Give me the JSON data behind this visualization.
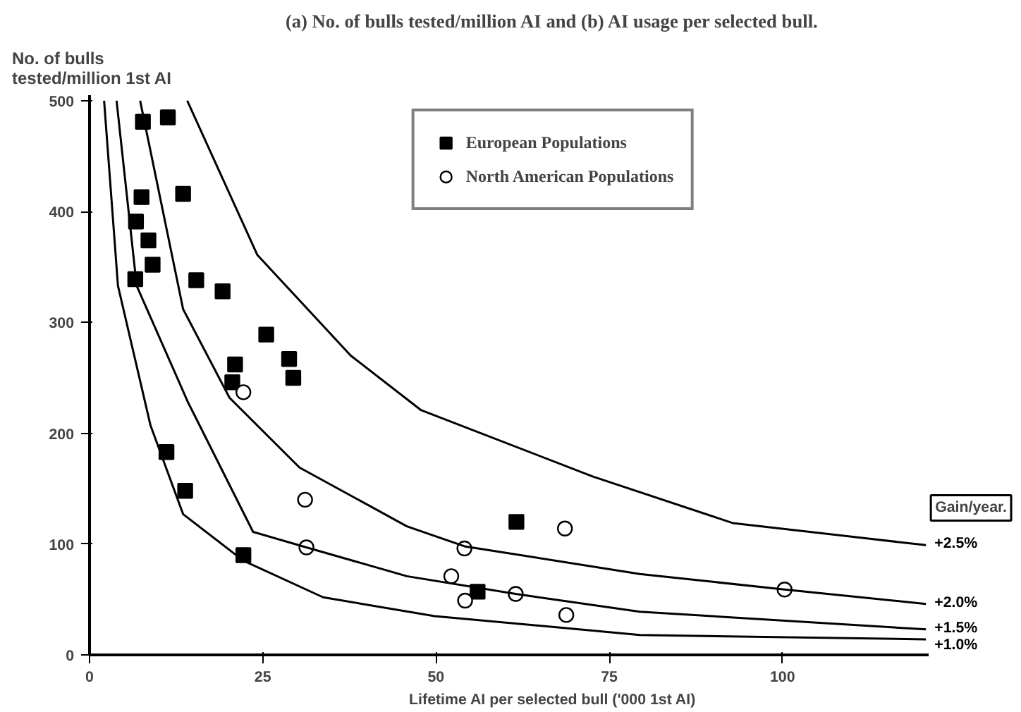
{
  "chart_data": {
    "type": "scatter",
    "title": "(a) No. of bulls tested/million AI and (b) AI usage per selected bull.",
    "ylabel": "No. of bulls\ntested/million 1st AI",
    "xlabel": "Lifetime AI per selected bull ('000 1st AI)",
    "annotations": [
      "Gain/year."
    ],
    "xlim": [
      0,
      121
    ],
    "ylim": [
      0,
      505
    ],
    "xticks": [
      0,
      25,
      50,
      75,
      100
    ],
    "yticks": [
      0,
      100,
      200,
      300,
      400,
      500
    ],
    "grid": false,
    "legend": "top",
    "series": [
      {
        "name": "European Populations",
        "marker": "square",
        "color": "#000000",
        "x": [
          7.7,
          11.3,
          7.5,
          13.5,
          6.7,
          8.5,
          9.1,
          6.6,
          15.4,
          19.2,
          25.5,
          28.8,
          29.4,
          21.0,
          20.6,
          11.1,
          13.8,
          22.2,
          61.6,
          56.0
        ],
        "values": [
          481,
          485,
          413,
          416,
          391,
          374,
          352,
          339,
          338,
          328,
          289,
          267,
          250,
          262,
          246,
          183,
          148,
          90,
          120,
          57
        ]
      },
      {
        "name": "North American Populations",
        "marker": "circle",
        "color": "#000000",
        "x": [
          22.2,
          31.1,
          31.3,
          54.1,
          68.6,
          52.2,
          54.2,
          61.5,
          68.8,
          100.3
        ],
        "values": [
          237,
          140,
          97,
          96,
          114,
          71,
          49,
          55,
          36,
          59
        ]
      },
      {
        "name": "+2.5%",
        "type": "line",
        "color": "#000000",
        "x": [
          14.1,
          24.2,
          37.7,
          47.8,
          72.6,
          92.8,
          120.7
        ],
        "values": [
          500,
          361,
          270,
          221,
          161,
          119,
          99
        ]
      },
      {
        "name": "+2.0%",
        "type": "line",
        "color": "#000000",
        "x": [
          7.3,
          13.5,
          20.2,
          30.3,
          45.8,
          54.1,
          79.4,
          100.3,
          120.7
        ],
        "values": [
          500,
          312,
          232,
          169,
          116,
          98,
          73,
          59,
          46
        ]
      },
      {
        "name": "+1.5%",
        "type": "line",
        "color": "#000000",
        "x": [
          3.9,
          6.8,
          14.2,
          23.6,
          31.3,
          45.8,
          61.5,
          79.4,
          120.7
        ],
        "values": [
          500,
          333,
          228,
          111,
          97,
          71,
          55,
          39,
          23
        ]
      },
      {
        "name": "+1.0%",
        "type": "line",
        "color": "#000000",
        "x": [
          2.1,
          4.1,
          8.8,
          13.5,
          22.2,
          33.7,
          49.8,
          79.4,
          120.7
        ],
        "values": [
          500,
          333,
          207,
          127,
          85,
          52,
          35,
          18,
          14
        ]
      }
    ]
  }
}
